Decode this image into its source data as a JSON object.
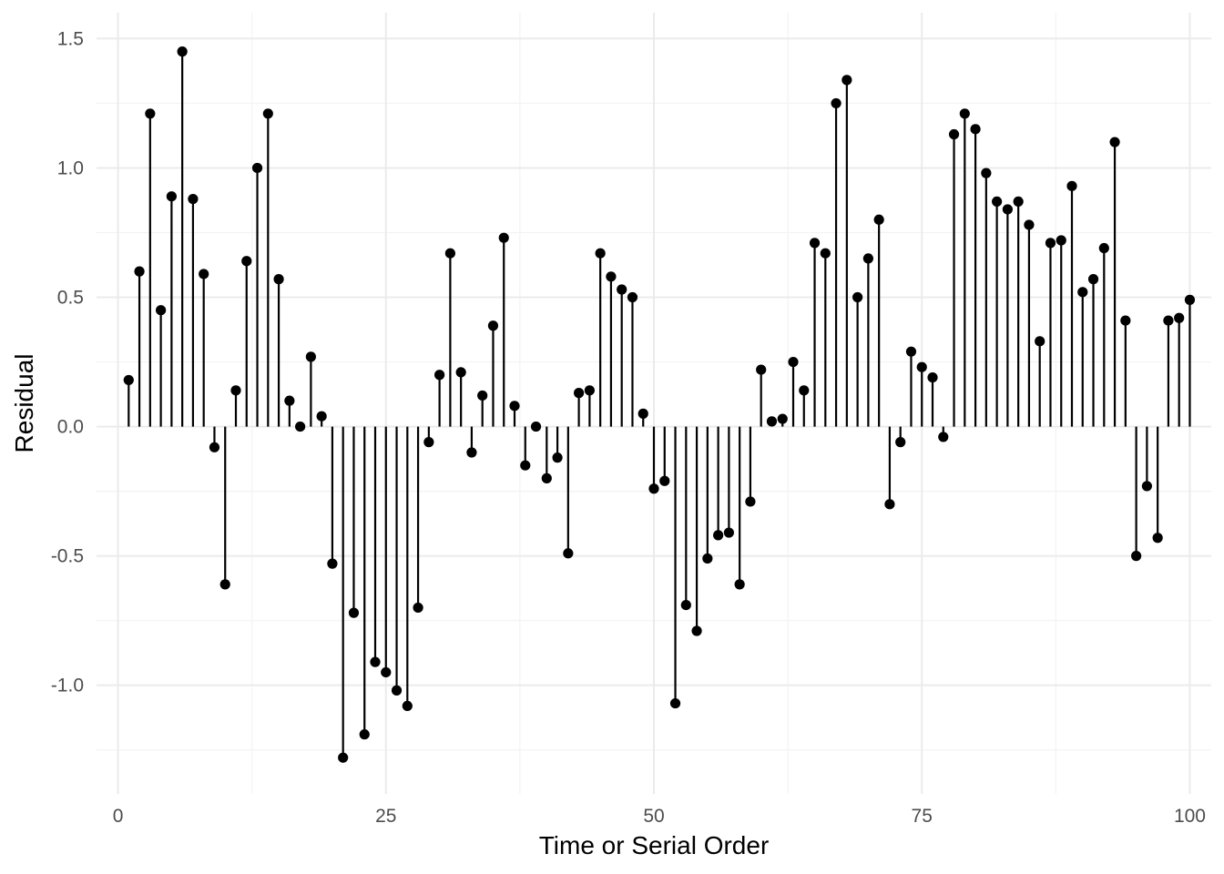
{
  "chart_data": {
    "type": "lollipop",
    "title": "",
    "xlabel": "Time or Serial Order",
    "ylabel": "Residual",
    "xlim": [
      -2,
      102
    ],
    "ylim": [
      -1.42,
      1.6
    ],
    "x_ticks": [
      0,
      25,
      50,
      75,
      100
    ],
    "x_tick_labels": [
      "0",
      "25",
      "50",
      "75",
      "100"
    ],
    "y_ticks": [
      -1.0,
      -0.5,
      0.0,
      0.5,
      1.0,
      1.5
    ],
    "y_tick_labels": [
      "-1.0",
      "-0.5",
      "0.0",
      "0.5",
      "1.0",
      "1.5"
    ],
    "baseline": 0,
    "grid": true,
    "legend": "none",
    "colors": {
      "point": "#000000",
      "stem": "#000000",
      "grid_major": "#ebebeb",
      "grid_minor": "#f3f3f3",
      "background": "#ffffff"
    },
    "x": [
      1,
      2,
      3,
      4,
      5,
      6,
      7,
      8,
      9,
      10,
      11,
      12,
      13,
      14,
      15,
      16,
      17,
      18,
      19,
      20,
      21,
      22,
      23,
      24,
      25,
      26,
      27,
      28,
      29,
      30,
      31,
      32,
      33,
      34,
      35,
      36,
      37,
      38,
      39,
      40,
      41,
      42,
      43,
      44,
      45,
      46,
      47,
      48,
      49,
      50,
      51,
      52,
      53,
      54,
      55,
      56,
      57,
      58,
      59,
      60,
      61,
      62,
      63,
      64,
      65,
      66,
      67,
      68,
      69,
      70,
      71,
      72,
      73,
      74,
      75,
      76,
      77,
      78,
      79,
      80,
      81,
      82,
      83,
      84,
      85,
      86,
      87,
      88,
      89,
      90,
      91,
      92,
      93,
      94,
      95,
      96,
      97,
      98,
      99,
      100
    ],
    "y": [
      0.18,
      0.6,
      1.21,
      0.45,
      0.89,
      1.45,
      0.88,
      0.59,
      -0.08,
      -0.61,
      0.14,
      0.64,
      1.0,
      1.21,
      0.57,
      0.1,
      0.0,
      0.27,
      0.04,
      -0.53,
      -1.28,
      -0.72,
      -1.19,
      -0.91,
      -0.95,
      -1.02,
      -1.08,
      -0.7,
      -0.06,
      0.2,
      0.67,
      0.21,
      -0.1,
      0.12,
      0.39,
      0.73,
      0.08,
      -0.15,
      0.0,
      -0.2,
      -0.12,
      -0.49,
      0.13,
      0.14,
      0.67,
      0.58,
      0.53,
      0.5,
      0.05,
      -0.24,
      -0.21,
      -1.07,
      -0.69,
      -0.79,
      -0.51,
      -0.42,
      -0.41,
      -0.61,
      -0.29,
      0.22,
      0.02,
      0.03,
      0.25,
      0.14,
      0.71,
      0.67,
      1.25,
      1.34,
      0.5,
      0.65,
      0.8,
      -0.3,
      -0.06,
      0.29,
      0.23,
      0.19,
      -0.04,
      1.13,
      1.21,
      1.15,
      0.98,
      0.87,
      0.84,
      0.87,
      0.78,
      0.33,
      0.71,
      0.72,
      0.93,
      0.52,
      0.57,
      0.69,
      1.1,
      0.41,
      -0.5,
      -0.23,
      -0.43,
      0.41,
      0.42,
      0.49
    ]
  }
}
